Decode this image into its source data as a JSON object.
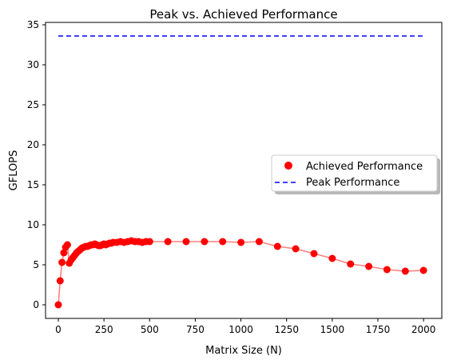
{
  "chart_data": {
    "type": "scatter",
    "title": "Peak vs. Achieved Performance",
    "xlabel": "Matrix Size (N)",
    "ylabel": "GFLOPS",
    "xlim": [
      -70,
      2100
    ],
    "ylim": [
      -1.7,
      35.3
    ],
    "x_ticks": [
      "0",
      "250",
      "500",
      "750",
      "1000",
      "1250",
      "1500",
      "1750",
      "2000"
    ],
    "y_ticks": [
      "0",
      "5",
      "10",
      "15",
      "20",
      "25",
      "30",
      "35"
    ],
    "grid": false,
    "legend_position": "center-right",
    "series": [
      {
        "name": "Achieved Performance",
        "kind": "scatter-with-line",
        "color": "#ff0000",
        "points": [
          [
            0,
            0.0
          ],
          [
            10,
            3.0
          ],
          [
            20,
            5.3
          ],
          [
            30,
            6.5
          ],
          [
            40,
            7.2
          ],
          [
            50,
            7.5
          ],
          [
            60,
            5.2
          ],
          [
            70,
            5.6
          ],
          [
            80,
            5.9
          ],
          [
            90,
            6.2
          ],
          [
            100,
            6.5
          ],
          [
            110,
            6.7
          ],
          [
            120,
            6.9
          ],
          [
            130,
            7.1
          ],
          [
            140,
            7.2
          ],
          [
            150,
            7.3
          ],
          [
            160,
            7.3
          ],
          [
            170,
            7.4
          ],
          [
            180,
            7.5
          ],
          [
            190,
            7.5
          ],
          [
            200,
            7.6
          ],
          [
            210,
            7.5
          ],
          [
            220,
            7.4
          ],
          [
            230,
            7.4
          ],
          [
            240,
            7.5
          ],
          [
            250,
            7.6
          ],
          [
            260,
            7.5
          ],
          [
            270,
            7.6
          ],
          [
            280,
            7.7
          ],
          [
            290,
            7.7
          ],
          [
            300,
            7.8
          ],
          [
            320,
            7.8
          ],
          [
            340,
            7.9
          ],
          [
            360,
            7.8
          ],
          [
            380,
            7.9
          ],
          [
            400,
            8.0
          ],
          [
            420,
            7.9
          ],
          [
            440,
            7.9
          ],
          [
            460,
            7.8
          ],
          [
            480,
            7.9
          ],
          [
            500,
            7.9
          ],
          [
            600,
            7.9
          ],
          [
            700,
            7.9
          ],
          [
            800,
            7.9
          ],
          [
            900,
            7.9
          ],
          [
            1000,
            7.8
          ],
          [
            1100,
            7.9
          ],
          [
            1200,
            7.3
          ],
          [
            1300,
            7.0
          ],
          [
            1400,
            6.4
          ],
          [
            1500,
            5.8
          ],
          [
            1600,
            5.1
          ],
          [
            1700,
            4.8
          ],
          [
            1800,
            4.4
          ],
          [
            1900,
            4.2
          ],
          [
            2000,
            4.3
          ]
        ]
      },
      {
        "name": "Peak Performance",
        "kind": "dashed-line",
        "color": "#0000ff",
        "x": [
          0,
          2000
        ],
        "y": [
          33.6,
          33.6
        ]
      }
    ]
  }
}
